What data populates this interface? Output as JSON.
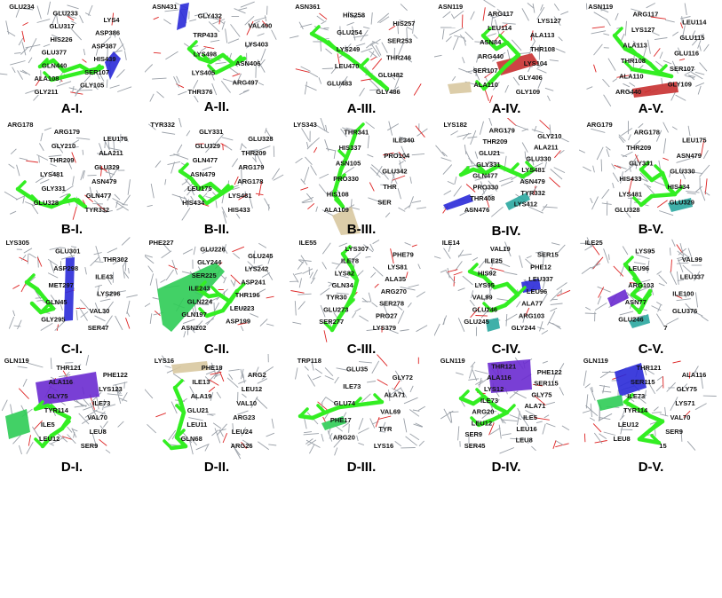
{
  "panels": [
    {
      "id": "A-I.",
      "label": "A-I.",
      "residues": [
        "GLU234",
        "GLU233",
        "LYS4",
        "GLU317",
        "ASP386",
        "HIS226",
        "ASP387",
        "GLU377",
        "HIS439",
        "GLN440",
        "SER107",
        "ALA108",
        "GLY105",
        "GLY211"
      ]
    },
    {
      "id": "A-II.",
      "label": "A-II.",
      "residues": [
        "ASN431",
        "GLY432",
        "VAL400",
        "TRP433",
        "LYS403",
        "LYS498",
        "ASN406",
        "LYS405",
        "ARG497",
        "THR376"
      ]
    },
    {
      "id": "A-III.",
      "label": "A-III.",
      "residues": [
        "ASN361",
        "HIS258",
        "HIS257",
        "GLU254",
        "SER253",
        "LYS249",
        "THR246",
        "LEU470",
        "GLU482",
        "GLU483",
        "GLY486"
      ]
    },
    {
      "id": "A-IV.",
      "label": "A-IV.",
      "residues": [
        "ASN119",
        "ARG117",
        "LYS127",
        "LEU114",
        "ALA113",
        "ASN84",
        "THR108",
        "ARG440",
        "LYS104",
        "SER107",
        "GLY406",
        "ALA110",
        "GLY109"
      ]
    },
    {
      "id": "A-V.",
      "label": "A-V.",
      "residues": [
        "ASN119",
        "ARG117",
        "LEU114",
        "LYS127",
        "GLU115",
        "ALA113",
        "GLU116",
        "THR108",
        "SER107",
        "ALA110",
        "GLY109",
        "ARG440"
      ]
    },
    {
      "id": "B-I.",
      "label": "B-I.",
      "residues": [
        "ARG178",
        "ARG179",
        "LEU175",
        "GLY210",
        "ALA211",
        "THR209",
        "GLU329",
        "LYS481",
        "ASN479",
        "GLY331",
        "GLN477",
        "GLU328",
        "TYR332"
      ]
    },
    {
      "id": "B-II.",
      "label": "B-II.",
      "residues": [
        "TYR332",
        "GLY331",
        "GLU328",
        "GLU329",
        "THR209",
        "GLN477",
        "ARG179",
        "ASN479",
        "ARG178",
        "LEU175",
        "LYS481",
        "HIS434",
        "HIS433"
      ]
    },
    {
      "id": "B-III.",
      "label": "B-III.",
      "residues": [
        "LYS343",
        "THR341",
        "ILE340",
        "HIS337",
        "PRO104",
        "ASN105",
        "GLU342",
        "PRO330",
        "THR",
        "HIS108",
        "SER",
        "ALA109"
      ]
    },
    {
      "id": "B-IV.",
      "label": "B-IV.",
      "residues": [
        "LYS182",
        "ARG179",
        "GLY210",
        "THR209",
        "ALA211",
        "GLU21",
        "GLU330",
        "GLY331",
        "LYS481",
        "GLN477",
        "ASN479",
        "PRO330",
        "TYR332",
        "THR408",
        "LYS412",
        "ASN476"
      ]
    },
    {
      "id": "B-V.",
      "label": "B-V.",
      "residues": [
        "ARG179",
        "ARG178",
        "LEU175",
        "THR209",
        "ASN479",
        "GLY331",
        "GLU330",
        "HIS433",
        "HIS434",
        "LYS481",
        "GLU329",
        "GLU328"
      ]
    },
    {
      "id": "C-I.",
      "label": "C-I.",
      "residues": [
        "LYS305",
        "GLU301",
        "THR302",
        "ASP298",
        "ILE43",
        "MET297",
        "LYS296",
        "GLN45",
        "VAL30",
        "GLY295",
        "SER47"
      ]
    },
    {
      "id": "C-II.",
      "label": "C-II.",
      "residues": [
        "PHE227",
        "GLU226",
        "GLU245",
        "GLY244",
        "LYS242",
        "SER225",
        "ASP241",
        "ILE243",
        "THR196",
        "GLN224",
        "LEU223",
        "GLN197",
        "ASP199",
        "ASN202"
      ]
    },
    {
      "id": "C-III.",
      "label": "C-III.",
      "residues": [
        "ILE55",
        "LYS307",
        "PHE79",
        "ILE78",
        "LYS81",
        "LYS82",
        "ALA35",
        "GLN34",
        "ARG270",
        "TYR30",
        "SER278",
        "GLU273",
        "PRO27",
        "SER277",
        "LYS379"
      ]
    },
    {
      "id": "C-IV.",
      "label": "C-IV.",
      "residues": [
        "ILE14",
        "VAL19",
        "SER15",
        "ILE25",
        "PHE12",
        "HIS92",
        "LEU337",
        "LYS95",
        "LEU96",
        "VAL99",
        "ALA77",
        "GLU246",
        "ARG103",
        "GLU245",
        "GLY244"
      ]
    },
    {
      "id": "C-V.",
      "label": "C-V.",
      "residues": [
        "ILE25",
        "LYS95",
        "VAL99",
        "LEU96",
        "LEU337",
        "ARG103",
        "ILE100",
        "ASN77",
        "GLU376",
        "GLU246",
        "7"
      ]
    },
    {
      "id": "D-I.",
      "label": "D-I.",
      "residues": [
        "GLN119",
        "THR121",
        "PHE122",
        "ALA116",
        "LYS123",
        "GLY75",
        "ILE73",
        "TYR114",
        "VAL70",
        "ILE5",
        "LEU8",
        "LEU12",
        "SER9"
      ]
    },
    {
      "id": "D-II.",
      "label": "D-II.",
      "residues": [
        "LYS16",
        "PHE18",
        "ARG2",
        "ILE13",
        "LEU12",
        "ALA19",
        "VAL10",
        "GLU21",
        "ARG23",
        "LEU11",
        "LEU24",
        "GLN68",
        "ARG26"
      ]
    },
    {
      "id": "D-III.",
      "label": "D-III.",
      "residues": [
        "TRP118",
        "GLU35",
        "GLY72",
        "ILE73",
        "ALA71",
        "GLU74",
        "VAL69",
        "PHE17",
        "TYR",
        "ARG20",
        "LYS16"
      ]
    },
    {
      "id": "D-IV.",
      "label": "D-IV.",
      "residues": [
        "GLN119",
        "THR121",
        "PHE122",
        "ALA116",
        "SER115",
        "LYS12",
        "GLY75",
        "ILE73",
        "ALA71",
        "ARG20",
        "ILE5",
        "LEU12",
        "LEU16",
        "SER9",
        "LEU8",
        "SER45"
      ]
    },
    {
      "id": "D-V.",
      "label": "D-V.",
      "residues": [
        "GLN119",
        "THR121",
        "ALA116",
        "SER115",
        "GLY75",
        "ILE73",
        "LYS71",
        "TYR114",
        "VAL70",
        "LEU12",
        "SER9",
        "LEU8",
        "15"
      ]
    }
  ],
  "colors": {
    "ligand": "#33ee22",
    "stick": "#9aa0a8",
    "oxygen": "#dd2222",
    "helix_blue": "#2a2ad8",
    "helix_purple": "#6a2ad0",
    "helix_green": "#2ecc55",
    "helix_teal": "#2aa7a0",
    "helix_tan": "#d8c8a0",
    "helix_red": "#c83030"
  }
}
